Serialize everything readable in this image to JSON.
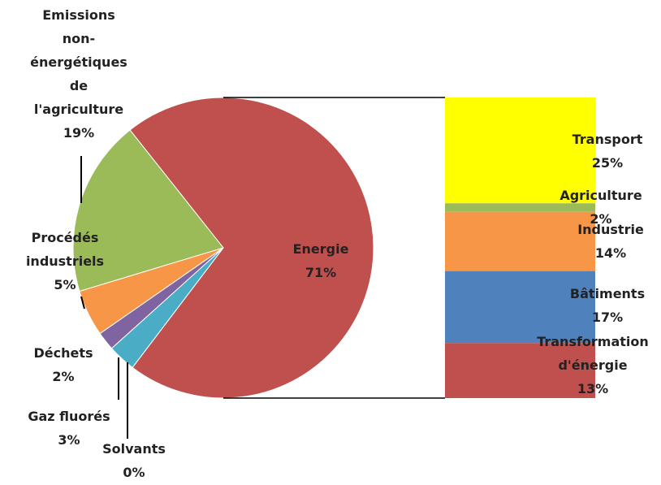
{
  "chart_data": {
    "type": "pie",
    "categories": [
      "Energie",
      "Solvants",
      "Gaz fluorés",
      "Déchets",
      "Procédés industriels",
      "Emissions non-énergétiques de l'agriculture"
    ],
    "values": [
      71,
      0,
      3,
      2,
      5,
      19
    ],
    "value_labels": [
      "71%",
      "0%",
      "3%",
      "2%",
      "5%",
      "19%"
    ],
    "colors": [
      "#c0504d",
      "#4bacc6",
      "#4bacc6",
      "#8064a2",
      "#f79646",
      "#9bbb59"
    ],
    "breakdown": {
      "categories": [
        "Transport",
        "Agriculture",
        "Industrie",
        "Bâtiments",
        "Transformation d'énergie"
      ],
      "values": [
        25,
        2,
        14,
        17,
        13
      ],
      "value_labels": [
        "25%",
        "2%",
        "14%",
        "17%",
        "13%"
      ],
      "colors": [
        "#ffff00",
        "#9bbb59",
        "#f79646",
        "#4f81bd",
        "#c0504d"
      ]
    }
  }
}
